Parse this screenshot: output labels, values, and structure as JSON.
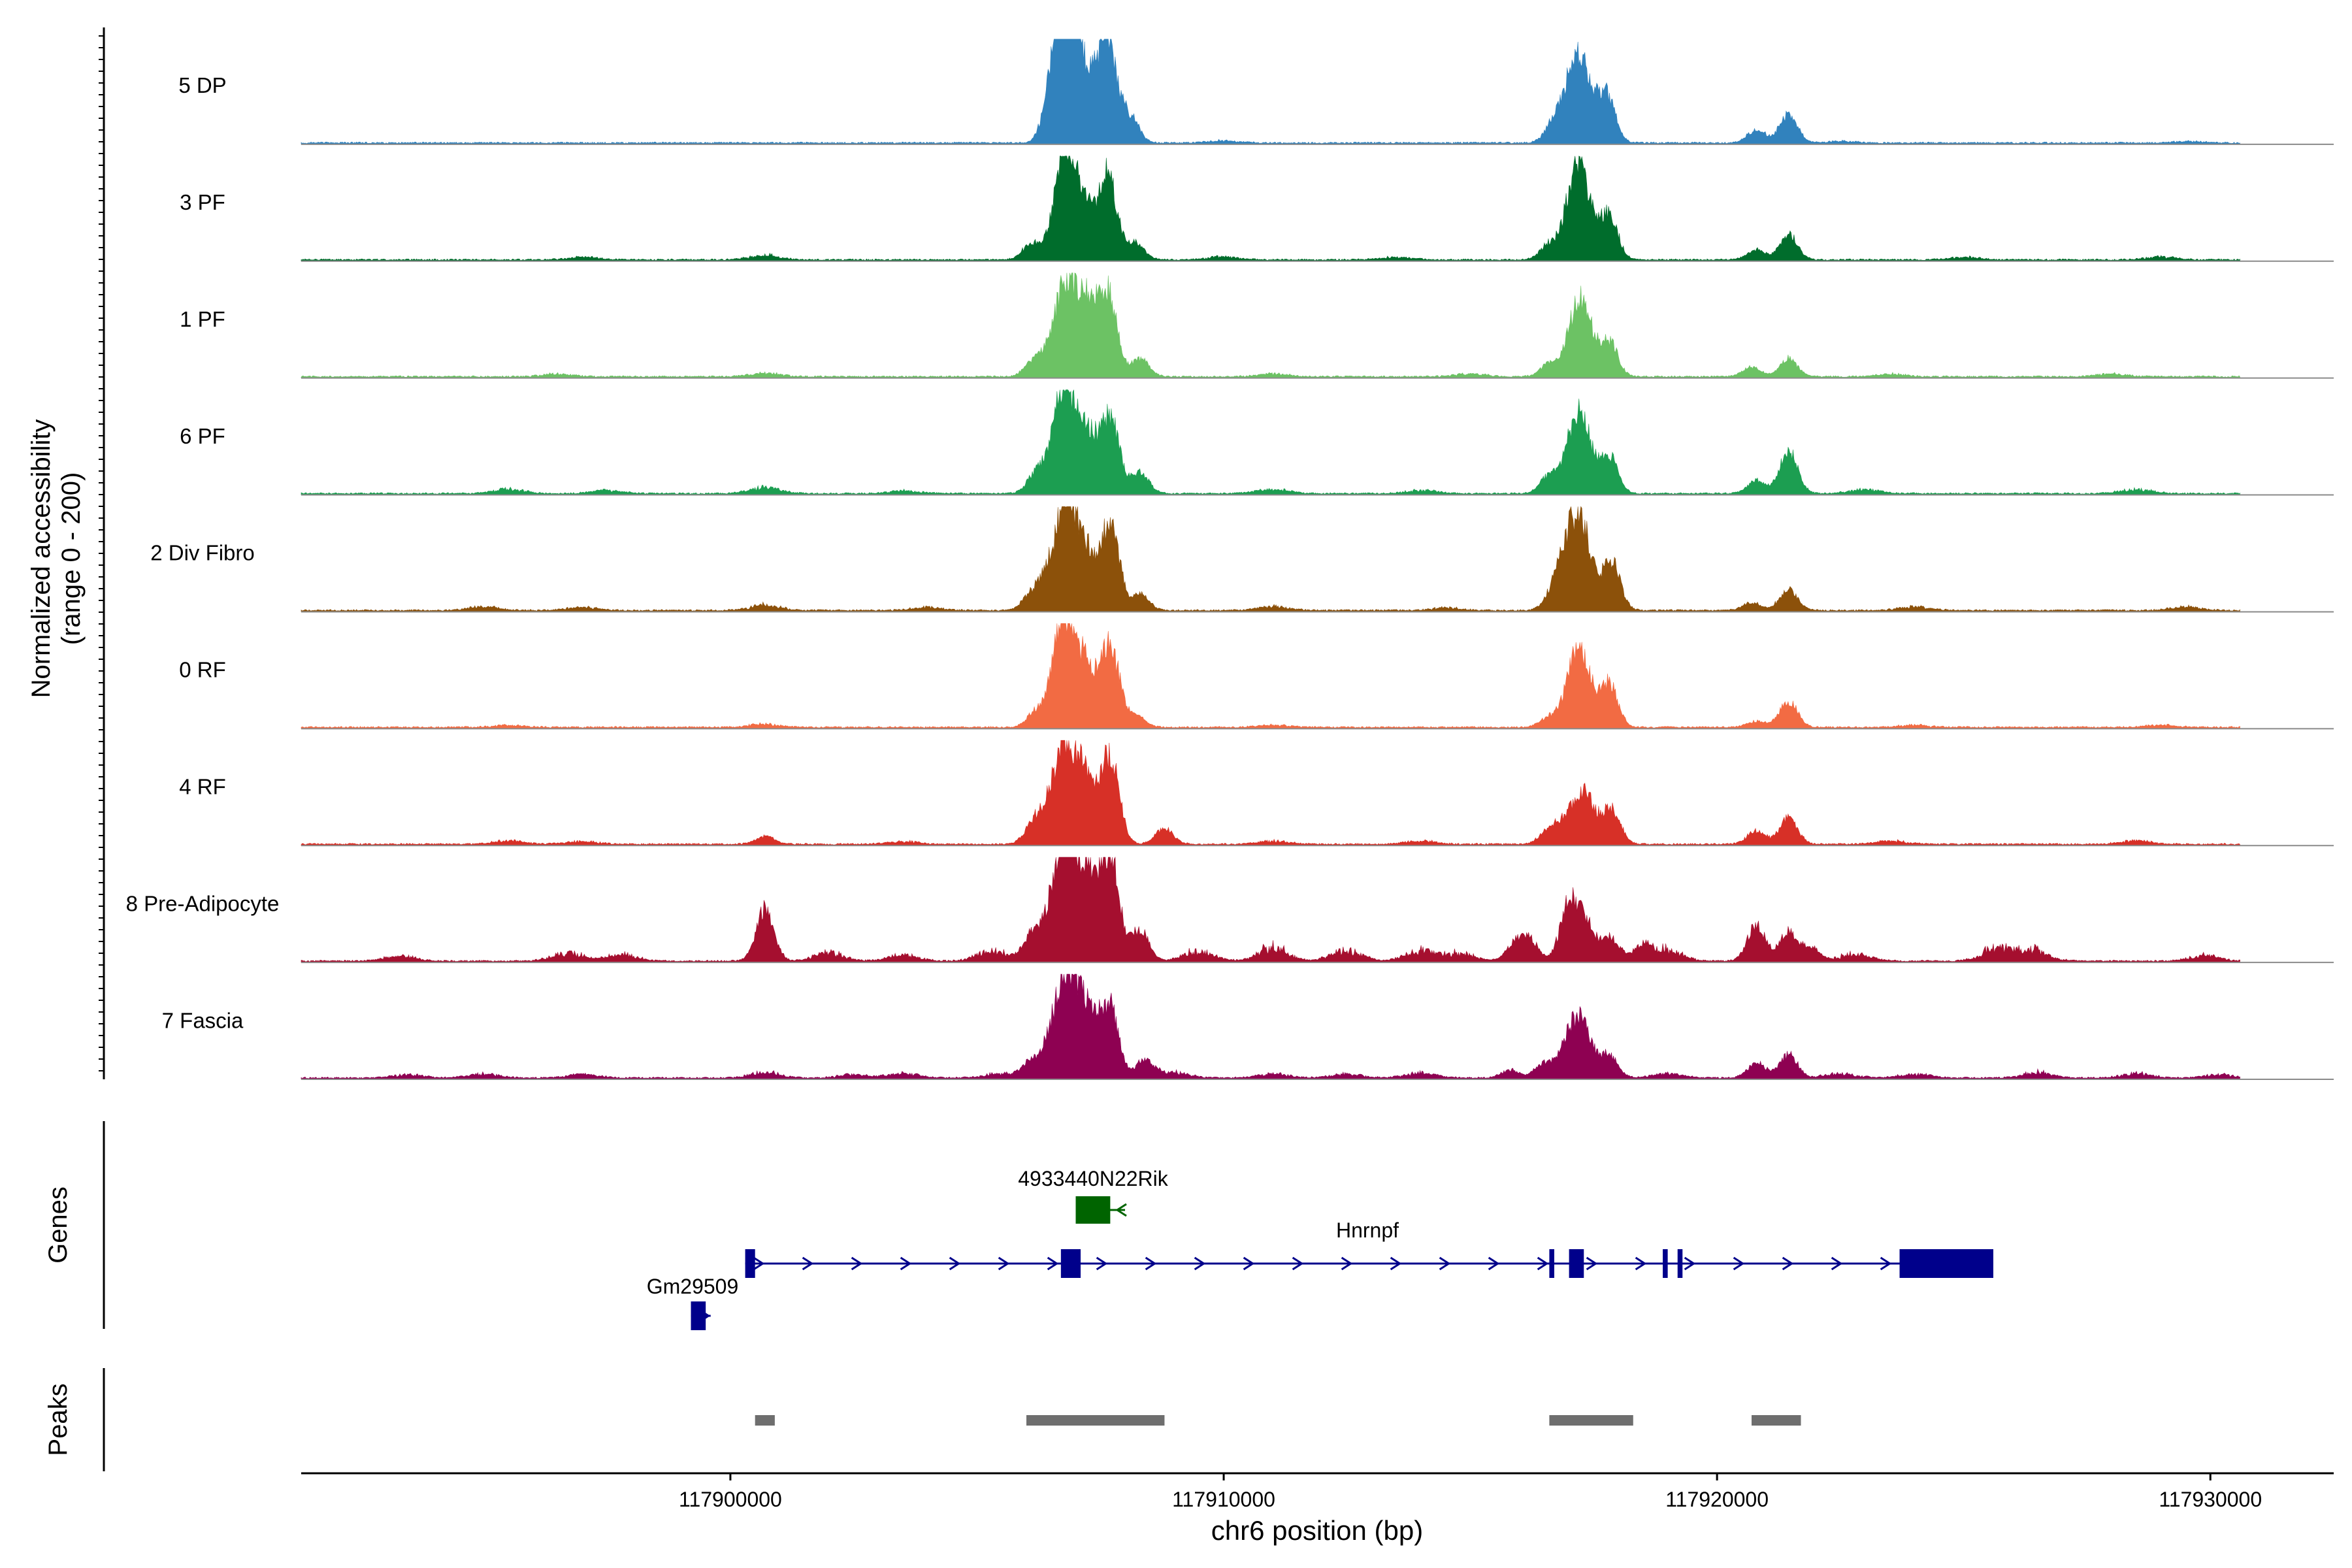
{
  "chart_data": {
    "type": "area",
    "title": "",
    "chromosome": "chr6",
    "xlabel": "chr6 position (bp)",
    "xlim": [
      117891300,
      117932500
    ],
    "xticks": [
      117900000,
      117910000,
      117920000,
      117930000
    ],
    "xtick_labels": [
      "117900000",
      "117910000",
      "117920000",
      "117930000"
    ],
    "coverage_ylabel_line1": "Normalized accessibility",
    "coverage_ylabel_line2": "(range 0 - 200)",
    "ylim": [
      0,
      200
    ],
    "signal_span": [
      117891300,
      117930600
    ],
    "tracks": [
      {
        "name": "5 DP",
        "color": "#3182BD",
        "peaks": [
          [
            117906550,
            130
          ],
          [
            117906800,
            175
          ],
          [
            117907000,
            140
          ],
          [
            117907650,
            200
          ],
          [
            117907300,
            80
          ],
          [
            117908100,
            50
          ],
          [
            117917050,
            105
          ],
          [
            117917300,
            115
          ],
          [
            117917750,
            95
          ],
          [
            117916700,
            40
          ],
          [
            117920800,
            25
          ],
          [
            117921450,
            55
          ]
        ],
        "bumps": [
          [
            117910000,
            4
          ],
          [
            117922500,
            3
          ],
          [
            117929600,
            3
          ]
        ]
      },
      {
        "name": "3 PF",
        "color": "#006D2C",
        "peaks": [
          [
            117906100,
            30
          ],
          [
            117906550,
            40
          ],
          [
            117906800,
            200
          ],
          [
            117907100,
            80
          ],
          [
            117907650,
            160
          ],
          [
            117907300,
            40
          ],
          [
            117908200,
            35
          ],
          [
            117917050,
            105
          ],
          [
            117917300,
            125
          ],
          [
            117917800,
            90
          ],
          [
            117916600,
            30
          ],
          [
            117920800,
            20
          ],
          [
            117921450,
            50
          ]
        ],
        "bumps": [
          [
            117897000,
            5
          ],
          [
            117900700,
            8
          ],
          [
            117910000,
            6
          ],
          [
            117913500,
            5
          ],
          [
            117925000,
            5
          ],
          [
            117929000,
            5
          ]
        ]
      },
      {
        "name": "1 PF",
        "color": "#6CC264",
        "peaks": [
          [
            117906150,
            30
          ],
          [
            117906500,
            50
          ],
          [
            117906800,
            165
          ],
          [
            117907150,
            100
          ],
          [
            117907650,
            165
          ],
          [
            117907300,
            60
          ],
          [
            117908300,
            35
          ],
          [
            117917050,
            65
          ],
          [
            117917300,
            125
          ],
          [
            117917800,
            70
          ],
          [
            117916600,
            25
          ],
          [
            117920700,
            18
          ],
          [
            117921450,
            35
          ]
        ],
        "bumps": [
          [
            117896500,
            5
          ],
          [
            117900700,
            7
          ],
          [
            117911000,
            5
          ],
          [
            117915000,
            5
          ],
          [
            117923500,
            5
          ],
          [
            117928000,
            5
          ]
        ]
      },
      {
        "name": "6 PF",
        "color": "#1C9E51",
        "peaks": [
          [
            117906200,
            40
          ],
          [
            117906550,
            60
          ],
          [
            117906800,
            185
          ],
          [
            117907150,
            80
          ],
          [
            117907700,
            145
          ],
          [
            117907350,
            55
          ],
          [
            117908300,
            40
          ],
          [
            117917050,
            85
          ],
          [
            117917300,
            115
          ],
          [
            117917800,
            75
          ],
          [
            117916600,
            35
          ],
          [
            117920800,
            25
          ],
          [
            117921450,
            85
          ]
        ],
        "bumps": [
          [
            117895500,
            8
          ],
          [
            117897500,
            6
          ],
          [
            117900700,
            12
          ],
          [
            117903500,
            5
          ],
          [
            117911000,
            8
          ],
          [
            117914000,
            6
          ],
          [
            117923000,
            8
          ],
          [
            117928500,
            8
          ]
        ]
      },
      {
        "name": "2 Div Fibro",
        "color": "#8C510A",
        "peaks": [
          [
            117906100,
            30
          ],
          [
            117906450,
            70
          ],
          [
            117906800,
            195
          ],
          [
            117907100,
            80
          ],
          [
            117907700,
            165
          ],
          [
            117907300,
            60
          ],
          [
            117908300,
            30
          ],
          [
            117917000,
            120
          ],
          [
            117917300,
            140
          ],
          [
            117917850,
            100
          ],
          [
            117916700,
            40
          ],
          [
            117920700,
            15
          ],
          [
            117921450,
            40
          ]
        ],
        "bumps": [
          [
            117895000,
            7
          ],
          [
            117897000,
            6
          ],
          [
            117900700,
            10
          ],
          [
            117904000,
            6
          ],
          [
            117911000,
            7
          ],
          [
            117914500,
            5
          ],
          [
            117924000,
            7
          ],
          [
            117929500,
            7
          ]
        ]
      },
      {
        "name": "0 RF",
        "color": "#F26B43",
        "peaks": [
          [
            117906200,
            30
          ],
          [
            117906600,
            80
          ],
          [
            117906800,
            165
          ],
          [
            117907150,
            100
          ],
          [
            117907700,
            155
          ],
          [
            117907350,
            40
          ],
          [
            117908200,
            25
          ],
          [
            117917050,
            85
          ],
          [
            117917300,
            105
          ],
          [
            117917800,
            85
          ],
          [
            117916600,
            20
          ],
          [
            117920800,
            12
          ],
          [
            117921450,
            50
          ]
        ],
        "bumps": [
          [
            117895500,
            4
          ],
          [
            117900700,
            6
          ],
          [
            117911000,
            4
          ],
          [
            117924000,
            4
          ],
          [
            117929000,
            4
          ]
        ]
      },
      {
        "name": "4 RF",
        "color": "#D73027",
        "peaks": [
          [
            117906150,
            40
          ],
          [
            117906500,
            80
          ],
          [
            117906800,
            165
          ],
          [
            117907150,
            100
          ],
          [
            117907700,
            170
          ],
          [
            117907300,
            55
          ],
          [
            117908800,
            30
          ],
          [
            117917000,
            55
          ],
          [
            117917350,
            90
          ],
          [
            117917850,
            70
          ],
          [
            117916600,
            30
          ],
          [
            117920800,
            25
          ],
          [
            117921450,
            50
          ],
          [
            117900700,
            15
          ]
        ],
        "bumps": [
          [
            117895500,
            6
          ],
          [
            117897000,
            5
          ],
          [
            117903500,
            5
          ],
          [
            117911000,
            6
          ],
          [
            117914000,
            6
          ],
          [
            117923500,
            6
          ],
          [
            117928500,
            6
          ]
        ]
      },
      {
        "name": "8 Pre-Adipocyte",
        "color": "#A50F2F",
        "peaks": [
          [
            117906100,
            50
          ],
          [
            117906500,
            90
          ],
          [
            117906800,
            190
          ],
          [
            117907100,
            120
          ],
          [
            117907700,
            200
          ],
          [
            117907350,
            100
          ],
          [
            117908300,
            60
          ],
          [
            117900700,
            100
          ],
          [
            117917000,
            110
          ],
          [
            117917350,
            70
          ],
          [
            117917850,
            45
          ],
          [
            117916200,
            40
          ],
          [
            117915900,
            30
          ],
          [
            117918500,
            30
          ],
          [
            117920800,
            70
          ],
          [
            117921450,
            55
          ],
          [
            117921900,
            25
          ]
        ],
        "bumps": [
          [
            117893300,
            10
          ],
          [
            117896700,
            15
          ],
          [
            117897800,
            12
          ],
          [
            117902000,
            15
          ],
          [
            117903500,
            12
          ],
          [
            117905300,
            20
          ],
          [
            117909500,
            20
          ],
          [
            117911000,
            25
          ],
          [
            117912500,
            20
          ],
          [
            117914000,
            20
          ],
          [
            117914800,
            15
          ],
          [
            117919000,
            20
          ],
          [
            117922800,
            12
          ],
          [
            117925700,
            25
          ],
          [
            117926400,
            20
          ],
          [
            117929900,
            10
          ]
        ]
      },
      {
        "name": "7 Fascia",
        "color": "#8E0152",
        "peaks": [
          [
            117906100,
            30
          ],
          [
            117906500,
            70
          ],
          [
            117906800,
            170
          ],
          [
            117907100,
            110
          ],
          [
            117907700,
            135
          ],
          [
            117907350,
            70
          ],
          [
            117908400,
            35
          ],
          [
            117917000,
            75
          ],
          [
            117917300,
            90
          ],
          [
            117917800,
            45
          ],
          [
            117916500,
            30
          ],
          [
            117915800,
            15
          ],
          [
            117920800,
            30
          ],
          [
            117921450,
            45
          ]
        ],
        "bumps": [
          [
            117893500,
            6
          ],
          [
            117895000,
            8
          ],
          [
            117897000,
            7
          ],
          [
            117900700,
            10
          ],
          [
            117902500,
            6
          ],
          [
            117903500,
            8
          ],
          [
            117905500,
            8
          ],
          [
            117909000,
            10
          ],
          [
            117911000,
            8
          ],
          [
            117912500,
            7
          ],
          [
            117914000,
            9
          ],
          [
            117919000,
            8
          ],
          [
            117922500,
            8
          ],
          [
            117924000,
            7
          ],
          [
            117926500,
            10
          ],
          [
            117928500,
            8
          ],
          [
            117930200,
            6
          ]
        ]
      }
    ],
    "genes_label": "Genes",
    "genes": [
      {
        "name": "Hnrnpf",
        "color": "#00008B",
        "strand": "+",
        "start": 117900300,
        "end": 117925600,
        "exons": [
          [
            117900300,
            117900500
          ],
          [
            117906700,
            117907100
          ],
          [
            117916600,
            117916700
          ],
          [
            117917000,
            117917300
          ],
          [
            117918900,
            117919000
          ],
          [
            117919200,
            117919300
          ],
          [
            117923700,
            117925600
          ]
        ]
      },
      {
        "name": "4933440N22Rik",
        "color": "#006400",
        "strand": "-",
        "start": 117907000,
        "end": 117908000,
        "exons": [
          [
            117907000,
            117907700
          ]
        ]
      },
      {
        "name": "Gm29509",
        "color": "#00008B",
        "strand": "+",
        "start": 117899200,
        "end": 117899600,
        "exons": [
          [
            117899200,
            117899500
          ]
        ]
      }
    ],
    "peaks_label": "Peaks",
    "peak_regions": [
      [
        117900500,
        117900900
      ],
      [
        117906000,
        117908800
      ],
      [
        117916600,
        117918300
      ],
      [
        117920700,
        117921700
      ]
    ]
  }
}
